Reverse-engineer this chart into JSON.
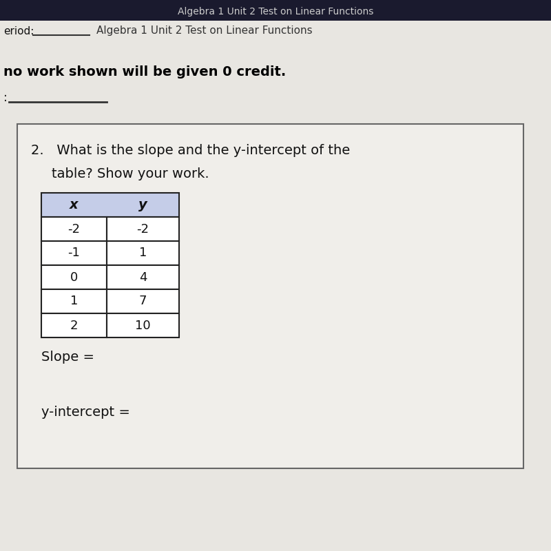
{
  "background_color": "#cac8c3",
  "page_bg": "#e8e6e1",
  "top_bar_color": "#2a5fa8",
  "top_text": "Algebra 1 Unit 2 Test on Linear Functions",
  "top_line2": "eriod:_________    Algebra 1 Unit 2 Test on Linear Functions",
  "table_header": [
    "x",
    "y"
  ],
  "table_data": [
    [
      "-2",
      "-2"
    ],
    [
      "-1",
      "1"
    ],
    [
      "0",
      "4"
    ],
    [
      "1",
      "7"
    ],
    [
      "2",
      "10"
    ]
  ],
  "header_bg": "#c5cde8",
  "row_bg": "#ffffff",
  "table_border": "#222222",
  "slope_label": "Slope =",
  "y_intercept_label": "y-intercept =",
  "box_border": "#666666",
  "box_bg": "#f0eeea",
  "text_color": "#111111",
  "bold_text_color": "#000000"
}
